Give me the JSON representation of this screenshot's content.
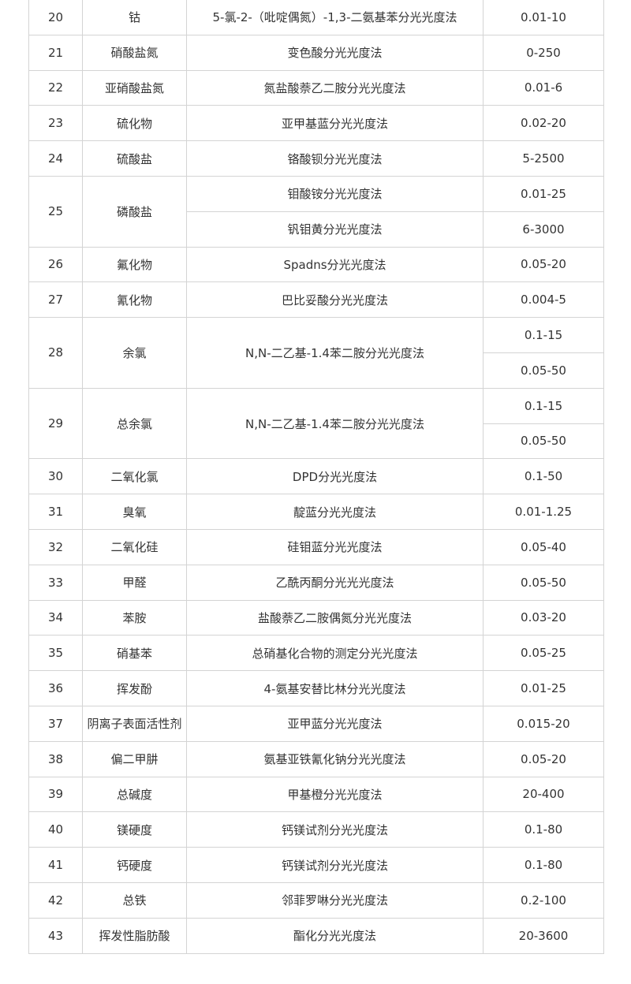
{
  "table": {
    "rows": [
      {
        "no": "20",
        "name": "钴",
        "methods": [
          "5-氯-2-（吡啶偶氮）-1,3-二氨基苯分光光度法"
        ],
        "ranges": [
          "0.01-10"
        ]
      },
      {
        "no": "21",
        "name": "硝酸盐氮",
        "methods": [
          "变色酸分光光度法"
        ],
        "ranges": [
          "0-250"
        ]
      },
      {
        "no": "22",
        "name": "亚硝酸盐氮",
        "methods": [
          "氮盐酸萘乙二胺分光光度法"
        ],
        "ranges": [
          "0.01-6"
        ]
      },
      {
        "no": "23",
        "name": "硫化物",
        "methods": [
          "亚甲基蓝分光光度法"
        ],
        "ranges": [
          "0.02-20"
        ]
      },
      {
        "no": "24",
        "name": "硫酸盐",
        "methods": [
          "铬酸钡分光光度法"
        ],
        "ranges": [
          "5-2500"
        ]
      },
      {
        "no": "25",
        "name": "磷酸盐",
        "methods": [
          "钼酸铵分光光度法",
          "钒钼黄分光光度法"
        ],
        "ranges": [
          "0.01-25",
          "6-3000"
        ]
      },
      {
        "no": "26",
        "name": "氟化物",
        "methods": [
          "Spadns分光光度法"
        ],
        "ranges": [
          "0.05-20"
        ]
      },
      {
        "no": "27",
        "name": "氰化物",
        "methods": [
          "巴比妥酸分光光度法"
        ],
        "ranges": [
          "0.004-5"
        ]
      },
      {
        "no": "28",
        "name": "余氯",
        "methods": [
          "N,N-二乙基-1.4苯二胺分光光度法"
        ],
        "ranges": [
          "0.1-15",
          "0.05-50"
        ]
      },
      {
        "no": "29",
        "name": "总余氯",
        "methods": [
          "N,N-二乙基-1.4苯二胺分光光度法"
        ],
        "ranges": [
          "0.1-15",
          "0.05-50"
        ]
      },
      {
        "no": "30",
        "name": "二氧化氯",
        "methods": [
          "DPD分光光度法"
        ],
        "ranges": [
          "0.1-50"
        ]
      },
      {
        "no": "31",
        "name": "臭氧",
        "methods": [
          "靛蓝分光光度法"
        ],
        "ranges": [
          "0.01-1.25"
        ]
      },
      {
        "no": "32",
        "name": "二氧化硅",
        "methods": [
          "硅钼蓝分光光度法"
        ],
        "ranges": [
          "0.05-40"
        ]
      },
      {
        "no": "33",
        "name": "甲醛",
        "methods": [
          "乙酰丙酮分光光光度法"
        ],
        "ranges": [
          "0.05-50"
        ]
      },
      {
        "no": "34",
        "name": "苯胺",
        "methods": [
          "盐酸萘乙二胺偶氮分光光度法"
        ],
        "ranges": [
          "0.03-20"
        ]
      },
      {
        "no": "35",
        "name": "硝基苯",
        "methods": [
          "总硝基化合物的测定分光光度法"
        ],
        "ranges": [
          "0.05-25"
        ]
      },
      {
        "no": "36",
        "name": "挥发酚",
        "methods": [
          "4-氨基安替比林分光光度法"
        ],
        "ranges": [
          "0.01-25"
        ]
      },
      {
        "no": "37",
        "name": "阴离子表面活性剂",
        "methods": [
          "亚甲蓝分光光度法"
        ],
        "ranges": [
          "0.015-20"
        ]
      },
      {
        "no": "38",
        "name": "偏二甲肼",
        "methods": [
          "氨基亚铁氰化钠分光光度法"
        ],
        "ranges": [
          "0.05-20"
        ]
      },
      {
        "no": "39",
        "name": "总碱度",
        "methods": [
          "甲基橙分光光度法"
        ],
        "ranges": [
          "20-400"
        ]
      },
      {
        "no": "40",
        "name": "镁硬度",
        "methods": [
          "钙镁试剂分光光度法"
        ],
        "ranges": [
          "0.1-80"
        ]
      },
      {
        "no": "41",
        "name": "钙硬度",
        "methods": [
          "钙镁试剂分光光度法"
        ],
        "ranges": [
          "0.1-80"
        ]
      },
      {
        "no": "42",
        "name": "总铁",
        "methods": [
          "邻菲罗啉分光光度法"
        ],
        "ranges": [
          "0.2-100"
        ]
      },
      {
        "no": "43",
        "name": "挥发性脂肪酸",
        "methods": [
          "酯化分光光度法"
        ],
        "ranges": [
          "20-3600"
        ]
      }
    ]
  }
}
